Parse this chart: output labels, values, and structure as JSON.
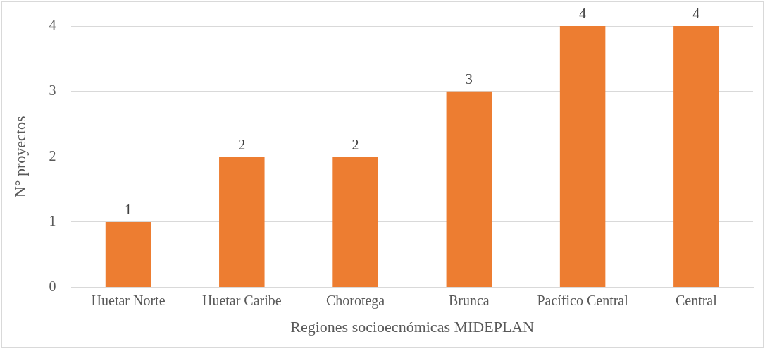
{
  "chart_data": {
    "type": "bar",
    "xlabel": "Regiones socioecnómicas MIDEPLAN",
    "ylabel": "N° proyectos",
    "categories": [
      "Huetar Norte",
      "Huetar Caribe",
      "Chorotega",
      "Brunca",
      "Pacífico Central",
      "Central"
    ],
    "values": [
      1,
      2,
      2,
      3,
      4,
      4
    ],
    "color": "#ed7d31",
    "ylim": [
      0,
      4
    ],
    "yticks": [
      0,
      1,
      2,
      3,
      4
    ],
    "grid": "y",
    "data_labels": true,
    "legend": false
  }
}
